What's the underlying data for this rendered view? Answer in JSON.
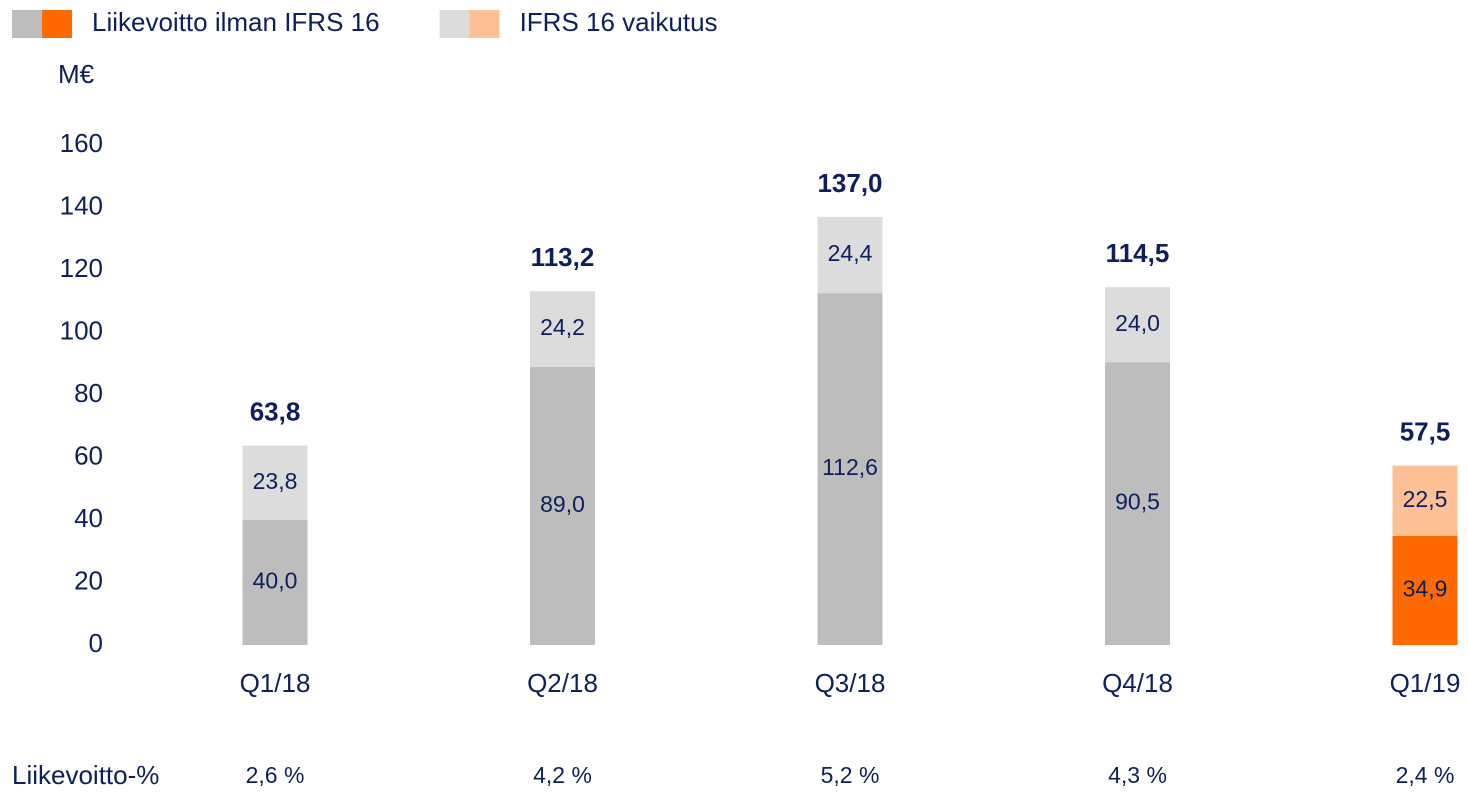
{
  "chart_data": {
    "type": "stacked_bar",
    "y_label": "M€",
    "categories": [
      "Q1/18",
      "Q2/18",
      "Q3/18",
      "Q4/18",
      "Q1/19"
    ],
    "series": [
      {
        "name": "Liikevoitto ilman IFRS 16",
        "colors": [
          "#bdbdbd",
          "#bdbdbd",
          "#bdbdbd",
          "#bdbdbd",
          "#ff6a00"
        ],
        "values": [
          40.0,
          89.0,
          112.6,
          90.5,
          34.9
        ],
        "value_labels": [
          "40,0",
          "89,0",
          "112,6",
          "90,5",
          "34,9"
        ]
      },
      {
        "name": "IFRS 16 vaikutus",
        "colors": [
          "#dcdcdc",
          "#dcdcdc",
          "#dcdcdc",
          "#dcdcdc",
          "#fdbf94"
        ],
        "values": [
          23.8,
          24.2,
          24.4,
          24.0,
          22.5
        ],
        "value_labels": [
          "23,8",
          "24,2",
          "24,4",
          "24,0",
          "22,5"
        ]
      }
    ],
    "totals": {
      "values": [
        63.8,
        113.2,
        137.0,
        114.5,
        57.5
      ],
      "value_labels": [
        "63,8",
        "113,2",
        "137,0",
        "114,5",
        "57,5"
      ]
    },
    "margin_row": {
      "label": "Liikevoitto-%",
      "values": [
        2.6,
        4.2,
        5.2,
        4.3,
        2.4
      ],
      "value_labels": [
        "2,6 %",
        "4,2 %",
        "5,2 %",
        "4,3 %",
        "2,4 %"
      ]
    },
    "ylim": [
      0,
      160
    ],
    "yticks": [
      0,
      20,
      40,
      60,
      80,
      100,
      120,
      140,
      160
    ],
    "grid": false
  }
}
